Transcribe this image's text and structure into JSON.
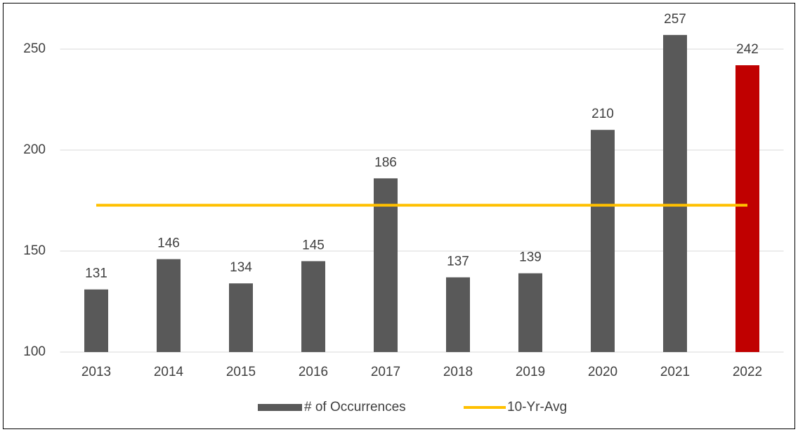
{
  "chart_data": {
    "type": "bar",
    "categories": [
      "2013",
      "2014",
      "2015",
      "2016",
      "2017",
      "2018",
      "2019",
      "2020",
      "2021",
      "2022"
    ],
    "series": [
      {
        "name": "# of Occurrences",
        "type": "bar",
        "color": "#595959",
        "colors": [
          "#595959",
          "#595959",
          "#595959",
          "#595959",
          "#595959",
          "#595959",
          "#595959",
          "#595959",
          "#595959",
          "#c00000"
        ],
        "values": [
          131,
          146,
          134,
          145,
          186,
          137,
          139,
          210,
          257,
          242
        ]
      },
      {
        "name": "10-Yr-Avg",
        "type": "line",
        "color": "#ffc000",
        "values": [
          172.7,
          172.7,
          172.7,
          172.7,
          172.7,
          172.7,
          172.7,
          172.7,
          172.7,
          172.7
        ]
      }
    ],
    "ylim": [
      100,
      270
    ],
    "yticks": [
      100,
      150,
      200,
      250
    ],
    "grid": true,
    "legend": "bottom"
  }
}
